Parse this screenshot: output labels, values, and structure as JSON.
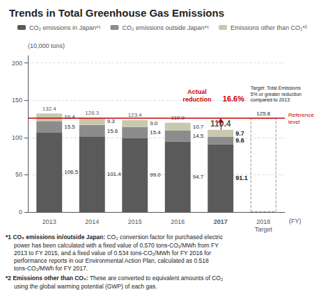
{
  "chart_data": {
    "type": "bar",
    "title": "Trends in Total Greenhouse Gas Emissions",
    "xlabel": "(FY)",
    "ylabel": "(10,000 tons)",
    "categories": [
      "2013",
      "2014",
      "2015",
      "2016",
      "2017",
      "2018\nTarget"
    ],
    "stacked": true,
    "data_labels": true,
    "grid": true,
    "legend": "top",
    "series": [
      {
        "name": "CO₂ emissions in Japan*¹",
        "color": "#5a5a5a",
        "values": [
          106.5,
          101.4,
          99.0,
          94.7,
          91.1,
          null
        ],
        "value_labels": [
          "106.5",
          "101.4",
          "99.0",
          "94.7",
          "91.1",
          null
        ]
      },
      {
        "name": "CO₂ emissions outside Japan*¹",
        "color": "#8c8c8c",
        "values": [
          15.5,
          15.6,
          15.4,
          14.5,
          9.6,
          null
        ],
        "value_labels": [
          "15.5",
          "15.6",
          "15.4",
          "14.5",
          "9.6",
          null
        ]
      },
      {
        "name": "Emissions other than CO₂*²",
        "color": "#c8c8b0",
        "values": [
          10.4,
          9.3,
          9.0,
          10.7,
          9.7,
          null
        ],
        "value_labels": [
          "10.4",
          "9.3",
          "9.0",
          "10.7",
          "9.7",
          null
        ]
      },
      {
        "color": "#999999",
        "line_style": "dashed",
        "values": [
          null,
          null,
          null,
          null,
          null,
          125.8
        ]
      }
    ],
    "totals": [
      132.4,
      126.3,
      123.4,
      119.9,
      110.4,
      null
    ],
    "reference_line": {
      "value": 125.8,
      "label": "Reference\nlevel",
      "color": "#cc0000"
    },
    "annotations": [
      {
        "text": "Actual\nreduction",
        "color": "#cc0000"
      },
      {
        "text": "16.6%",
        "color": "#cc0000"
      },
      {
        "text": "Target: Total Emissions\n5% or greater reduction\ncompared to 2013"
      }
    ],
    "footnotes": [
      {
        "heading": "*1 CO₂ emissions in/outside Japan: ",
        "text": "CO₂ conversion factor for purchased electric",
        "continuation": "power has been calculated with a fixed value of 0.570 tons-CO₂/MWh from FY\n2013 to FY 2015, and a fixed value of 0.534 tons-CO₂/MWh for FY 2016 for\nperformance reports in our Environmental Action Plan, calculated as 0.518\ntons-CO₂/MWh for FY 2017."
      },
      {
        "heading": "*2 Emissions other than CO₂: ",
        "text": "These are converted to equivalent amounts of CO₂",
        "continuation": "using the global warming potential (GWP) of each gas."
      }
    ],
    "ylim": [
      0,
      210
    ],
    "yticks": [
      0,
      50,
      100,
      150,
      200
    ]
  }
}
